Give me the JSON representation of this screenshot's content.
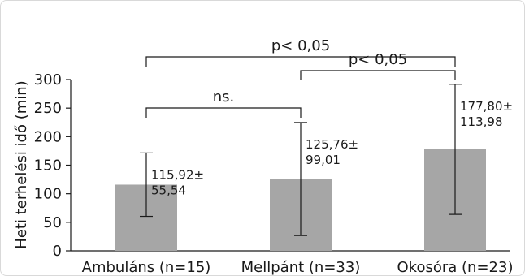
{
  "chart_data": {
    "type": "bar",
    "ylabel": "Heti terhelési idő (min)",
    "xlabel": "",
    "ylim": [
      0,
      300
    ],
    "yticks": [
      "0",
      "50",
      "100",
      "150",
      "200",
      "250",
      "300"
    ],
    "categories": [
      "Ambuláns (n=15)",
      "Mellpánt (n=33)",
      "Okosóra (n=23)"
    ],
    "values": [
      115.92,
      125.76,
      177.8
    ],
    "sd": [
      55.54,
      99.01,
      113.98
    ],
    "data_labels": [
      [
        "115,92±",
        "55,54"
      ],
      [
        "125,76±",
        "99,01"
      ],
      [
        "177,80±",
        "113,98"
      ]
    ],
    "bar_color": "#a6a6a6",
    "comparisons": [
      {
        "from": 0,
        "to": 2,
        "label": "p< 0,05"
      },
      {
        "from": 1,
        "to": 2,
        "label": "p< 0,05"
      },
      {
        "from": 0,
        "to": 1,
        "label": "ns."
      }
    ],
    "grid": false
  }
}
